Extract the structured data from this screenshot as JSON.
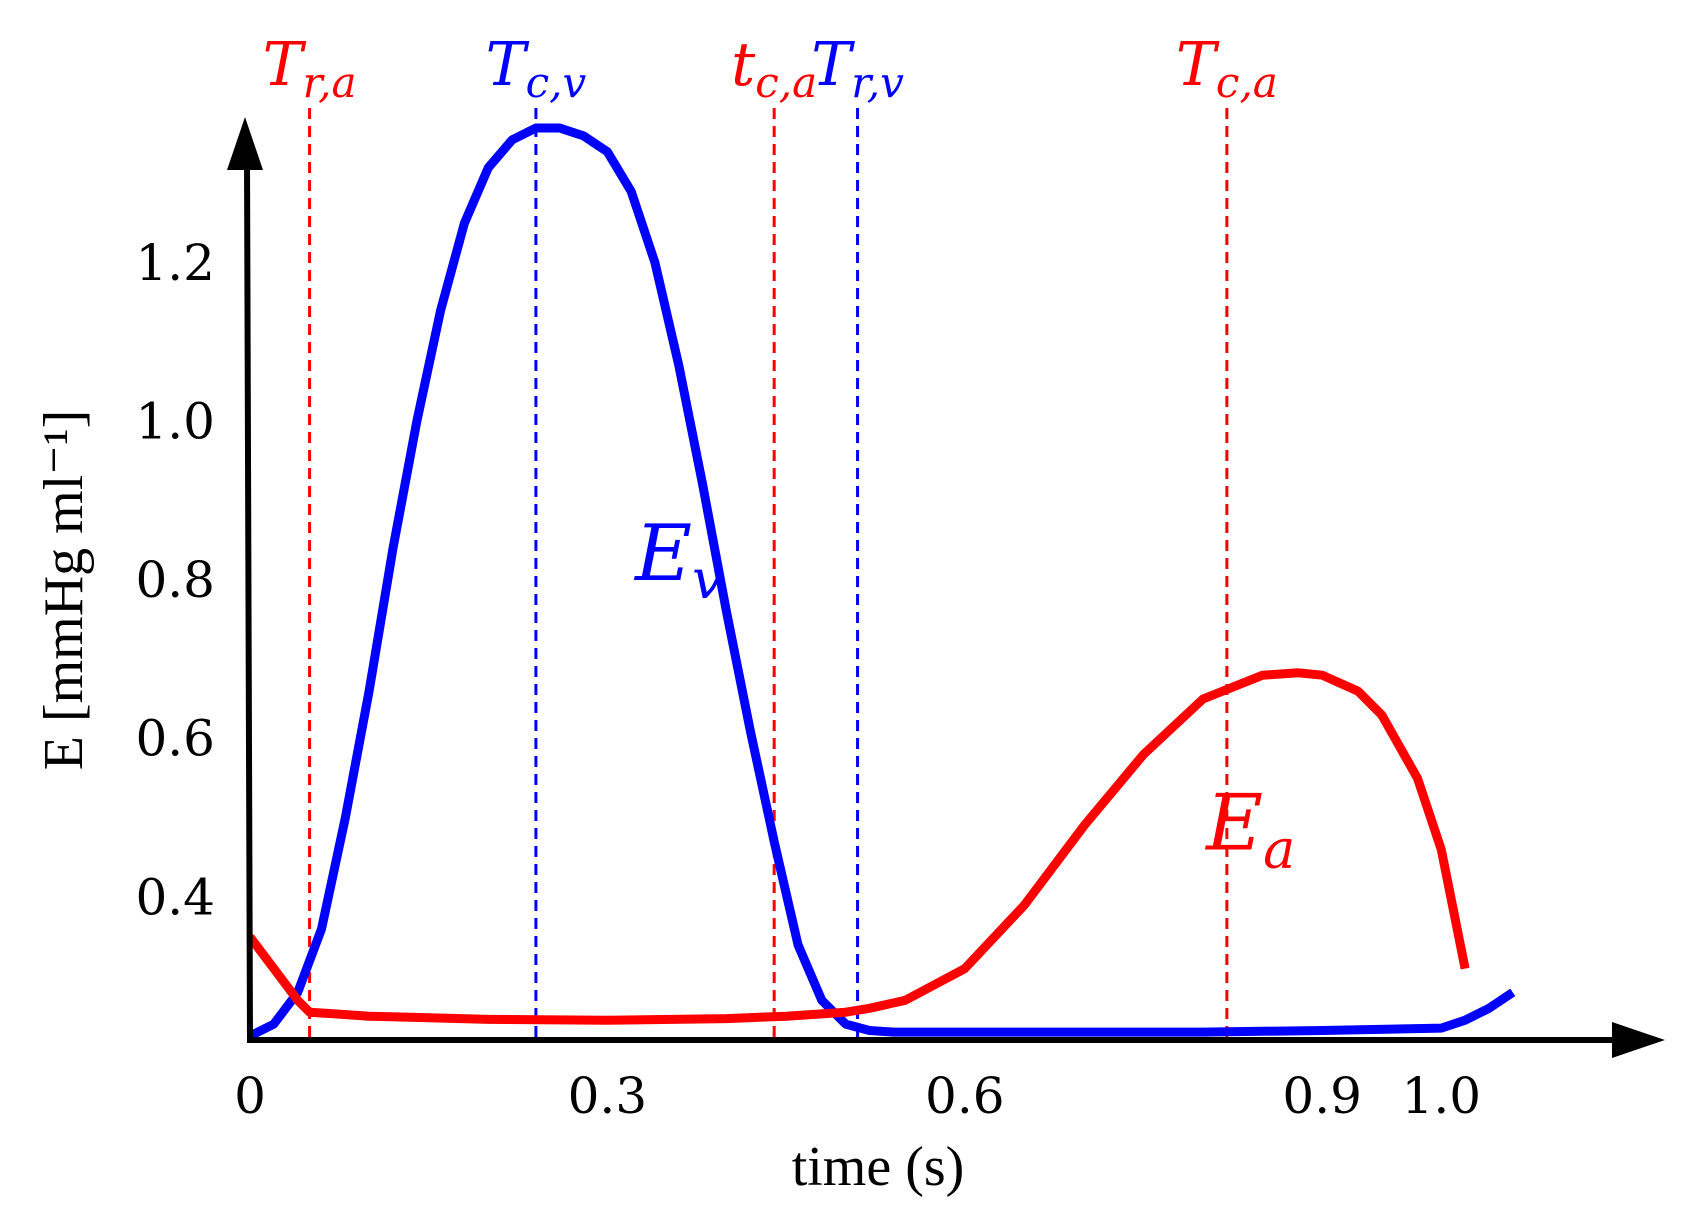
{
  "chart_data": {
    "type": "line",
    "title": "",
    "xlabel": "time (s)",
    "ylabel": "E [mmHg ml⁻¹]",
    "xlim": [
      0,
      1.15
    ],
    "ylim": [
      0.22,
      1.37
    ],
    "x_ticks": [
      {
        "value": 0,
        "label": "0"
      },
      {
        "value": 0.3,
        "label": "0.3"
      },
      {
        "value": 0.6,
        "label": "0.6"
      },
      {
        "value": 0.9,
        "label": "0.9"
      },
      {
        "value": 1.0,
        "label": "1.0"
      }
    ],
    "y_ticks": [
      {
        "value": 0.4,
        "label": "0.4"
      },
      {
        "value": 0.6,
        "label": "0.6"
      },
      {
        "value": 0.8,
        "label": "0.8"
      },
      {
        "value": 1.0,
        "label": "1.0"
      },
      {
        "value": 1.2,
        "label": "1.2"
      }
    ],
    "series": [
      {
        "name": "E_v",
        "label_main": "E",
        "label_sub": "v",
        "color": "#0000ff",
        "label_at": [
          0.36,
          0.8
        ],
        "x": [
          0,
          0.02,
          0.04,
          0.06,
          0.08,
          0.1,
          0.12,
          0.14,
          0.16,
          0.18,
          0.2,
          0.22,
          0.24,
          0.26,
          0.27,
          0.28,
          0.29,
          0.3,
          0.32,
          0.34,
          0.36,
          0.38,
          0.4,
          0.42,
          0.44,
          0.46,
          0.48,
          0.5,
          0.52,
          0.54,
          0.56,
          0.6,
          0.7,
          0.8,
          0.9,
          1.0,
          1.02,
          1.04,
          1.06
        ],
        "y": [
          0.225,
          0.24,
          0.28,
          0.36,
          0.5,
          0.66,
          0.84,
          1.0,
          1.14,
          1.25,
          1.32,
          1.355,
          1.37,
          1.37,
          1.365,
          1.36,
          1.35,
          1.34,
          1.29,
          1.2,
          1.07,
          0.92,
          0.76,
          0.61,
          0.47,
          0.34,
          0.27,
          0.24,
          0.232,
          0.23,
          0.23,
          0.23,
          0.23,
          0.23,
          0.232,
          0.235,
          0.245,
          0.26,
          0.28
        ]
      },
      {
        "name": "E_a",
        "label_main": "E",
        "label_sub": "a",
        "color": "#ff0000",
        "label_at": [
          0.84,
          0.46
        ],
        "x": [
          0,
          0.02,
          0.04,
          0.05,
          0.07,
          0.1,
          0.15,
          0.2,
          0.3,
          0.4,
          0.45,
          0.5,
          0.52,
          0.55,
          0.6,
          0.65,
          0.7,
          0.75,
          0.8,
          0.85,
          0.88,
          0.9,
          0.93,
          0.95,
          0.98,
          1.0,
          1.02
        ],
        "y": [
          0.35,
          0.31,
          0.27,
          0.255,
          0.253,
          0.25,
          0.248,
          0.246,
          0.245,
          0.247,
          0.25,
          0.255,
          0.26,
          0.27,
          0.31,
          0.39,
          0.49,
          0.58,
          0.65,
          0.68,
          0.683,
          0.68,
          0.66,
          0.63,
          0.55,
          0.46,
          0.31
        ]
      }
    ],
    "markers": [
      {
        "id": "Tra",
        "main": "T",
        "sub": "r,a",
        "x": 0.05,
        "y_top": 1.52,
        "color": "#ff0000"
      },
      {
        "id": "Tcv",
        "main": "T",
        "sub": "c,v",
        "x": 0.24,
        "y_top": 1.52,
        "color": "#0000ff"
      },
      {
        "id": "tca",
        "main": "t",
        "sub": "c,a",
        "x": 0.44,
        "y_top": 1.52,
        "color": "#ff0000"
      },
      {
        "id": "Trv",
        "main": "T",
        "sub": "r,v",
        "x": 0.51,
        "y_top": 1.52,
        "color": "#0000ff"
      },
      {
        "id": "Tca",
        "main": "T",
        "sub": "c,a",
        "x": 0.82,
        "y_top": 1.52,
        "color": "#ff0000"
      }
    ]
  }
}
